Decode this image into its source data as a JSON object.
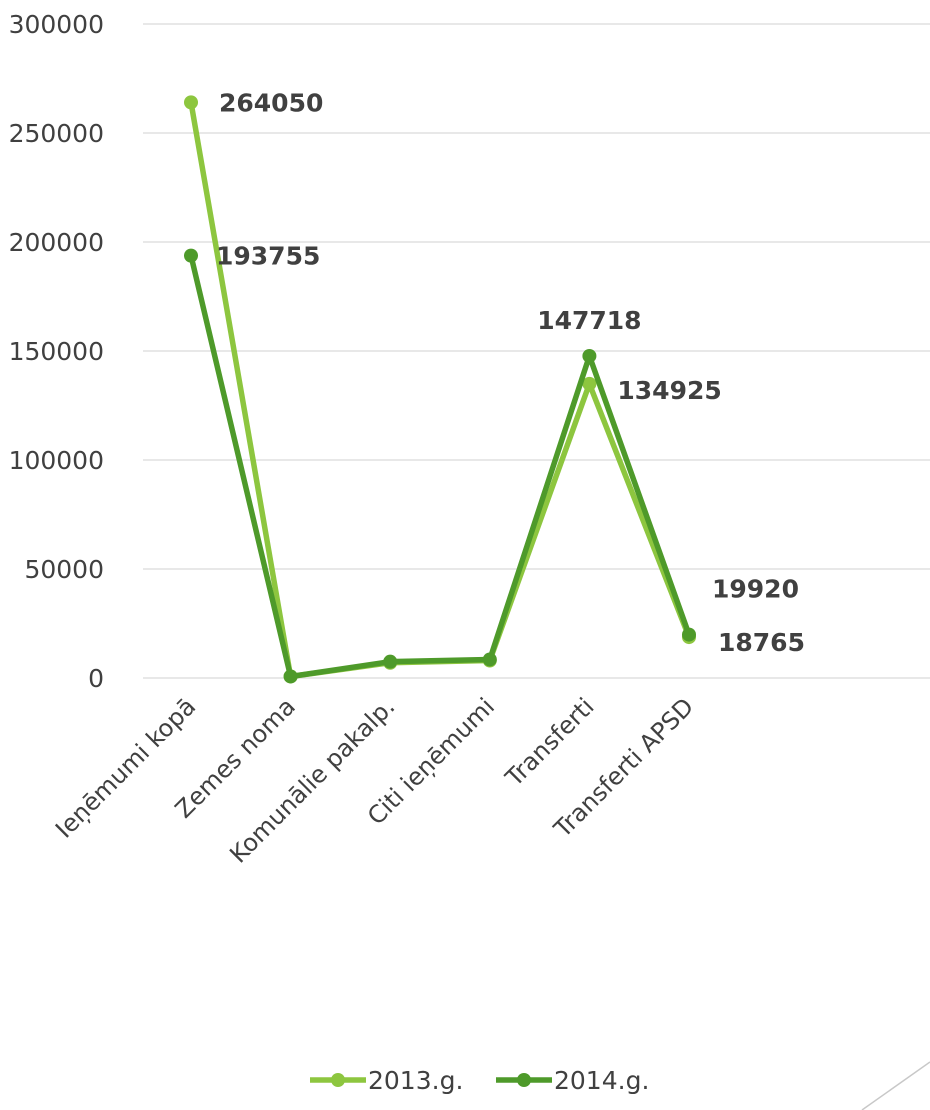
{
  "chart_data": {
    "type": "line",
    "categories": [
      "Ieņēmumi kopā",
      "Zemes noma",
      "Komunālie pakalp.",
      "Citi ieņēmumi",
      "Transferti",
      "Transferti APSD"
    ],
    "ylim": [
      0,
      300000
    ],
    "yticks": [
      0,
      50000,
      100000,
      150000,
      200000,
      250000,
      300000
    ],
    "grid": true,
    "legend_position": "bottom",
    "series": [
      {
        "name": "2013.g.",
        "color": "#8dc63f",
        "values": [
          264050,
          700,
          7000,
          8000,
          134925,
          18765
        ],
        "labels": [
          "264050",
          "",
          "",
          "",
          "134925",
          "18765"
        ]
      },
      {
        "name": "2014.g.",
        "color": "#4e9a2a",
        "values": [
          193755,
          700,
          7500,
          8500,
          147718,
          19920
        ],
        "labels": [
          "193755",
          "",
          "",
          "",
          "147718",
          "19920"
        ]
      }
    ]
  },
  "decoration": {
    "corner_line_color": "#c8c8c8"
  }
}
